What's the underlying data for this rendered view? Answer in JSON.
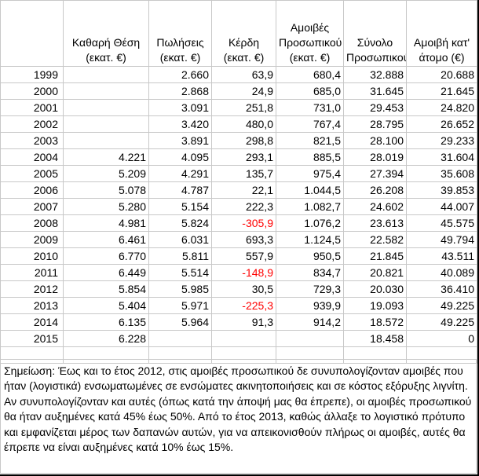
{
  "headers": [
    "",
    "Καθαρή Θέση (εκατ. €)",
    "Πωλήσεις (εκατ. €)",
    "Κέρδη (εκατ. €)",
    "Αμοιβές Προσωπικού (εκατ. €)",
    "Σύνολο Προσωπικού",
    "Αμοιβή κατ' άτομο (€)"
  ],
  "rows": [
    {
      "year": "1999",
      "equity": "",
      "sales": "2.660",
      "profit": "63,9",
      "wages": "680,4",
      "staff": "32.888",
      "per_person": "20.688",
      "negative": false
    },
    {
      "year": "2000",
      "equity": "",
      "sales": "2.868",
      "profit": "24,9",
      "wages": "685,0",
      "staff": "31.645",
      "per_person": "21.645",
      "negative": false
    },
    {
      "year": "2001",
      "equity": "",
      "sales": "3.091",
      "profit": "251,8",
      "wages": "731,0",
      "staff": "29.453",
      "per_person": "24.820",
      "negative": false
    },
    {
      "year": "2002",
      "equity": "",
      "sales": "3.420",
      "profit": "480,0",
      "wages": "767,4",
      "staff": "28.795",
      "per_person": "26.652",
      "negative": false
    },
    {
      "year": "2003",
      "equity": "",
      "sales": "3.891",
      "profit": "298,8",
      "wages": "821,5",
      "staff": "28.100",
      "per_person": "29.233",
      "negative": false
    },
    {
      "year": "2004",
      "equity": "4.221",
      "sales": "4.095",
      "profit": "293,1",
      "wages": "885,5",
      "staff": "28.019",
      "per_person": "31.604",
      "negative": false
    },
    {
      "year": "2005",
      "equity": "5.209",
      "sales": "4.291",
      "profit": "135,7",
      "wages": "975,4",
      "staff": "27.394",
      "per_person": "35.608",
      "negative": false
    },
    {
      "year": "2006",
      "equity": "5.078",
      "sales": "4.787",
      "profit": "22,1",
      "wages": "1.044,5",
      "staff": "26.208",
      "per_person": "39.853",
      "negative": false
    },
    {
      "year": "2007",
      "equity": "5.280",
      "sales": "5.154",
      "profit": "222,3",
      "wages": "1.082,7",
      "staff": "24.602",
      "per_person": "44.007",
      "negative": false
    },
    {
      "year": "2008",
      "equity": "4.981",
      "sales": "5.824",
      "profit": "-305,9",
      "wages": "1.076,2",
      "staff": "23.613",
      "per_person": "45.575",
      "negative": true
    },
    {
      "year": "2009",
      "equity": "6.461",
      "sales": "6.031",
      "profit": "693,3",
      "wages": "1.124,5",
      "staff": "22.582",
      "per_person": "49.794",
      "negative": false
    },
    {
      "year": "2010",
      "equity": "6.770",
      "sales": "5.811",
      "profit": "557,9",
      "wages": "950,5",
      "staff": "21.845",
      "per_person": "43.511",
      "negative": false
    },
    {
      "year": "2011",
      "equity": "6.449",
      "sales": "5.514",
      "profit": "-148,9",
      "wages": "834,7",
      "staff": "20.821",
      "per_person": "40.089",
      "negative": true
    },
    {
      "year": "2012",
      "equity": "5.854",
      "sales": "5.985",
      "profit": "30,5",
      "wages": "729,3",
      "staff": "20.030",
      "per_person": "36.410",
      "negative": false
    },
    {
      "year": "2013",
      "equity": "5.404",
      "sales": "5.971",
      "profit": "-225,3",
      "wages": "939,9",
      "staff": "19.093",
      "per_person": "49.225",
      "negative": true
    },
    {
      "year": "2014",
      "equity": "6.135",
      "sales": "5.964",
      "profit": "91,3",
      "wages": "914,2",
      "staff": "18.572",
      "per_person": "49.225",
      "negative": false
    },
    {
      "year": "2015",
      "equity": "6.228",
      "sales": "",
      "profit": "",
      "wages": "",
      "staff": "18.458",
      "per_person": "0",
      "negative": false
    }
  ],
  "note": "Σημείωση: Έως και το έτος 2012, στις αμοιβές προσωπικού δε συνυπολογίζονταν αμοιβές που ήταν (λογιστικά) ενσωματωμένες σε ενσώματες ακινητοποιήσεις και σε κόστος εξόρυξης λιγνίτη. Αν συνυπολογίζονταν και αυτές (όπως κατά την άποψή μας θα έπρεπε), οι αμοιβές προσωπικού θα ήταν αυξημένες κατά 45% έως 50%. Από το έτος 2013, καθώς άλλαξε το λογιστικό πρότυπο και εμφανίζεται μέρος των δαπανών αυτών, για να απεικονισθούν πλήρως οι αμοιβές, αυτές θα έπρεπε να είναι αυξημένες κατά 10% έως 15%.",
  "colors": {
    "negative": "#ff0000",
    "grid": "#c8c8c8"
  }
}
